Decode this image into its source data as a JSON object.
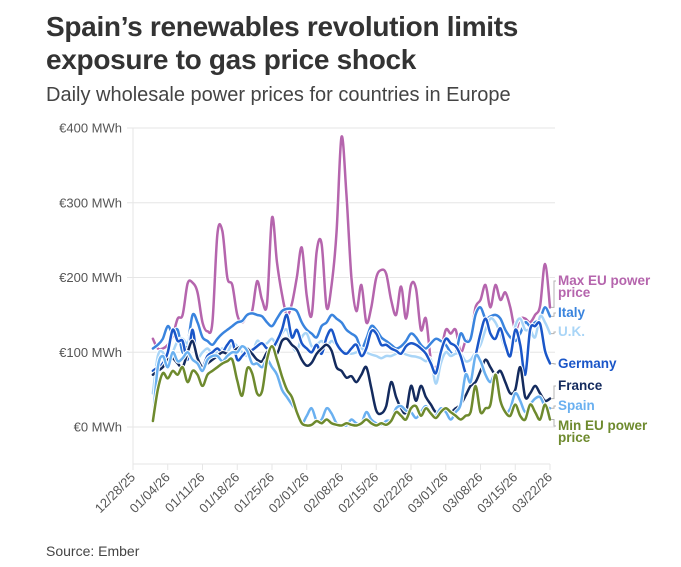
{
  "title": "Spain’s renewables revolution limits exposure to gas price shock",
  "subtitle": "Daily wholesale power prices for countries in Europe",
  "source": "Source: Ember",
  "chart_data": {
    "type": "line",
    "title": "Spain’s renewables revolution limits exposure to gas price shock",
    "subtitle": "Daily wholesale power prices for countries in Europe",
    "xlabel": "",
    "ylabel": "",
    "ylim": [
      0,
      400
    ],
    "y_ticks": [
      0,
      100,
      200,
      300,
      400
    ],
    "y_tick_labels": [
      "€0 MWh",
      "€100 MWh",
      "€200 MWh",
      "€300 MWh",
      "€400 MWh"
    ],
    "x_tick_labels": [
      "12/28/25",
      "01/04/26",
      "01/11/26",
      "01/18/26",
      "01/25/26",
      "02/01/26",
      "02/08/26",
      "02/15/26",
      "02/22/26",
      "03/01/26",
      "03/08/26",
      "03/15/26",
      "03/22/26"
    ],
    "x_range_days": [
      0,
      84
    ],
    "x_start_day": 4,
    "grid": "horizontal",
    "legend": "direct-labels-right",
    "series": [
      {
        "name": "Max EU power price",
        "label_lines": [
          "Max EU power",
          "price"
        ],
        "color": "#b565ad",
        "values": [
          118,
          105,
          105,
          110,
          122,
          145,
          150,
          192,
          193,
          180,
          140,
          128,
          140,
          258,
          262,
          200,
          190,
          150,
          140,
          150,
          155,
          195,
          170,
          165,
          280,
          220,
          178,
          150,
          165,
          200,
          240,
          175,
          150,
          235,
          245,
          160,
          190,
          260,
          388,
          310,
          200,
          155,
          190,
          140,
          160,
          200,
          210,
          205,
          170,
          150,
          188,
          145,
          190,
          185,
          130,
          145,
          90,
          80,
          100,
          130,
          125,
          130,
          100,
          115,
          120,
          160,
          170,
          190,
          160,
          190,
          170,
          180,
          160,
          130,
          145,
          145,
          140,
          150,
          162,
          218,
          160
        ]
      },
      {
        "name": "Italy",
        "label_lines": [
          "Italy"
        ],
        "color": "#3a84de",
        "values": [
          105,
          110,
          118,
          135,
          125,
          130,
          100,
          112,
          150,
          140,
          120,
          115,
          110,
          118,
          125,
          130,
          135,
          140,
          142,
          150,
          152,
          150,
          148,
          140,
          135,
          145,
          155,
          158,
          158,
          155,
          140,
          130,
          125,
          120,
          135,
          140,
          150,
          145,
          140,
          130,
          125,
          120,
          105,
          118,
          135,
          130,
          120,
          115,
          110,
          105,
          108,
          115,
          125,
          120,
          110,
          105,
          112,
          118,
          115,
          110,
          100,
          98,
          125,
          115,
          118,
          150,
          160,
          145,
          148,
          150,
          145,
          130,
          120,
          115,
          125,
          140,
          135,
          140,
          145,
          160,
          148
        ]
      },
      {
        "name": "U.K.",
        "label_lines": [
          "U.K."
        ],
        "color": "#a9d5f7",
        "values": [
          45,
          95,
          100,
          85,
          100,
          115,
          118,
          112,
          130,
          95,
          100,
          105,
          98,
          100,
          105,
          100,
          112,
          108,
          100,
          95,
          98,
          115,
          110,
          112,
          118,
          110,
          125,
          130,
          110,
          102,
          120,
          125,
          108,
          110,
          115,
          108,
          115,
          110,
          103,
          100,
          98,
          100,
          105,
          100,
          97,
          95,
          92,
          95,
          95,
          98,
          100,
          97,
          95,
          94,
          92,
          88,
          90,
          58,
          85,
          100,
          95,
          98,
          98,
          88,
          90,
          100,
          110,
          130,
          145,
          140,
          125,
          105,
          100,
          135,
          145,
          130,
          130,
          120,
          148,
          140,
          125
        ]
      },
      {
        "name": "Germany",
        "label_lines": [
          "Germany"
        ],
        "color": "#1a56c8",
        "values": [
          75,
          80,
          85,
          100,
          130,
          115,
          115,
          90,
          130,
          85,
          80,
          95,
          100,
          105,
          100,
          110,
          115,
          90,
          95,
          102,
          103,
          108,
          112,
          105,
          105,
          115,
          130,
          150,
          120,
          130,
          112,
          105,
          100,
          110,
          98,
          120,
          130,
          112,
          102,
          98,
          105,
          110,
          95,
          105,
          128,
          125,
          110,
          110,
          105,
          102,
          98,
          108,
          112,
          110,
          105,
          98,
          85,
          72,
          100,
          118,
          112,
          108,
          95,
          72,
          65,
          95,
          125,
          145,
          125,
          118,
          132,
          110,
          95,
          130,
          110,
          70,
          130,
          135,
          138,
          102,
          85
        ]
      },
      {
        "name": "France",
        "label_lines": [
          "France"
        ],
        "color": "#142b5e",
        "values": [
          70,
          75,
          80,
          90,
          92,
          85,
          80,
          100,
          115,
          92,
          80,
          85,
          90,
          95,
          100,
          98,
          100,
          105,
          108,
          105,
          98,
          90,
          88,
          100,
          105,
          98,
          115,
          118,
          110,
          104,
          90,
          82,
          86,
          98,
          105,
          110,
          102,
          80,
          75,
          66,
          68,
          60,
          70,
          80,
          52,
          22,
          18,
          28,
          60,
          40,
          25,
          20,
          55,
          35,
          55,
          40,
          30,
          20,
          25,
          22,
          20,
          25,
          30,
          42,
          55,
          60,
          75,
          90,
          80,
          70,
          75,
          60,
          45,
          50,
          80,
          40,
          45,
          55,
          45,
          35,
          38
        ]
      },
      {
        "name": "Spain",
        "label_lines": [
          "Spain"
        ],
        "color": "#6ab0f0",
        "values": [
          10,
          80,
          95,
          80,
          100,
          88,
          92,
          100,
          90,
          85,
          75,
          90,
          95,
          95,
          88,
          95,
          100,
          100,
          108,
          102,
          85,
          85,
          80,
          90,
          80,
          70,
          50,
          40,
          30,
          20,
          5,
          15,
          25,
          8,
          10,
          25,
          18,
          5,
          3,
          2,
          10,
          5,
          5,
          20,
          10,
          5,
          3,
          8,
          10,
          25,
          28,
          22,
          20,
          12,
          20,
          28,
          18,
          15,
          25,
          20,
          10,
          20,
          30,
          70,
          60,
          95,
          88,
          70,
          60,
          70,
          40,
          20,
          25,
          45,
          35,
          20,
          30,
          38,
          40,
          28,
          25
        ]
      },
      {
        "name": "Min EU power price",
        "label_lines": [
          "Min EU power",
          "price"
        ],
        "color": "#6e8a2e",
        "values": [
          8,
          50,
          72,
          65,
          75,
          70,
          80,
          60,
          75,
          70,
          55,
          70,
          75,
          80,
          85,
          88,
          90,
          62,
          42,
          78,
          72,
          45,
          48,
          90,
          108,
          90,
          68,
          50,
          40,
          20,
          5,
          2,
          3,
          8,
          5,
          10,
          5,
          3,
          2,
          5,
          3,
          2,
          5,
          10,
          5,
          2,
          5,
          3,
          8,
          20,
          15,
          10,
          25,
          28,
          15,
          25,
          18,
          12,
          20,
          25,
          20,
          15,
          10,
          15,
          20,
          55,
          20,
          25,
          30,
          70,
          35,
          20,
          15,
          30,
          15,
          10,
          30,
          20,
          10,
          30,
          10
        ]
      }
    ]
  }
}
